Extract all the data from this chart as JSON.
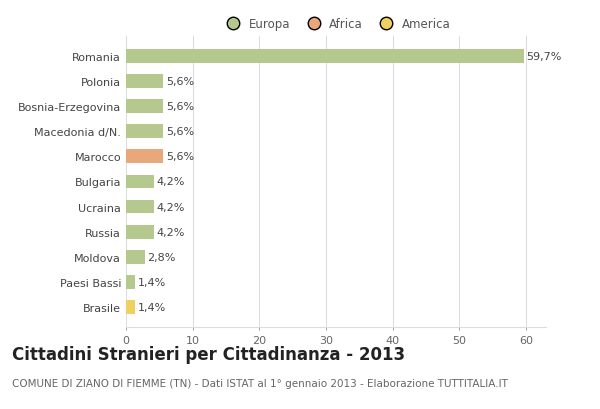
{
  "title": "Cittadini Stranieri per Cittadinanza - 2013",
  "subtitle": "COMUNE DI ZIANO DI FIEMME (TN) - Dati ISTAT al 1° gennaio 2013 - Elaborazione TUTTITALIA.IT",
  "categories": [
    "Romania",
    "Polonia",
    "Bosnia-Erzegovina",
    "Macedonia d/N.",
    "Marocco",
    "Bulgaria",
    "Ucraina",
    "Russia",
    "Moldova",
    "Paesi Bassi",
    "Brasile"
  ],
  "values": [
    59.7,
    5.6,
    5.6,
    5.6,
    5.6,
    4.2,
    4.2,
    4.2,
    2.8,
    1.4,
    1.4
  ],
  "labels": [
    "59,7%",
    "5,6%",
    "5,6%",
    "5,6%",
    "5,6%",
    "4,2%",
    "4,2%",
    "4,2%",
    "2,8%",
    "1,4%",
    "1,4%"
  ],
  "colors": [
    "#b5c98e",
    "#b5c98e",
    "#b5c98e",
    "#b5c98e",
    "#e8a87c",
    "#b5c98e",
    "#b5c98e",
    "#b5c98e",
    "#b5c98e",
    "#b5c98e",
    "#f0d060"
  ],
  "legend_labels": [
    "Europa",
    "Africa",
    "America"
  ],
  "legend_colors": [
    "#b5c98e",
    "#e8a87c",
    "#f0d060"
  ],
  "xlim": [
    0,
    63
  ],
  "xticks": [
    0,
    10,
    20,
    30,
    40,
    50,
    60
  ],
  "background_color": "#ffffff",
  "bar_height": 0.55,
  "grid_color": "#dddddd",
  "label_fontsize": 8,
  "title_fontsize": 12,
  "subtitle_fontsize": 7.5,
  "ytick_fontsize": 8,
  "xtick_fontsize": 8
}
